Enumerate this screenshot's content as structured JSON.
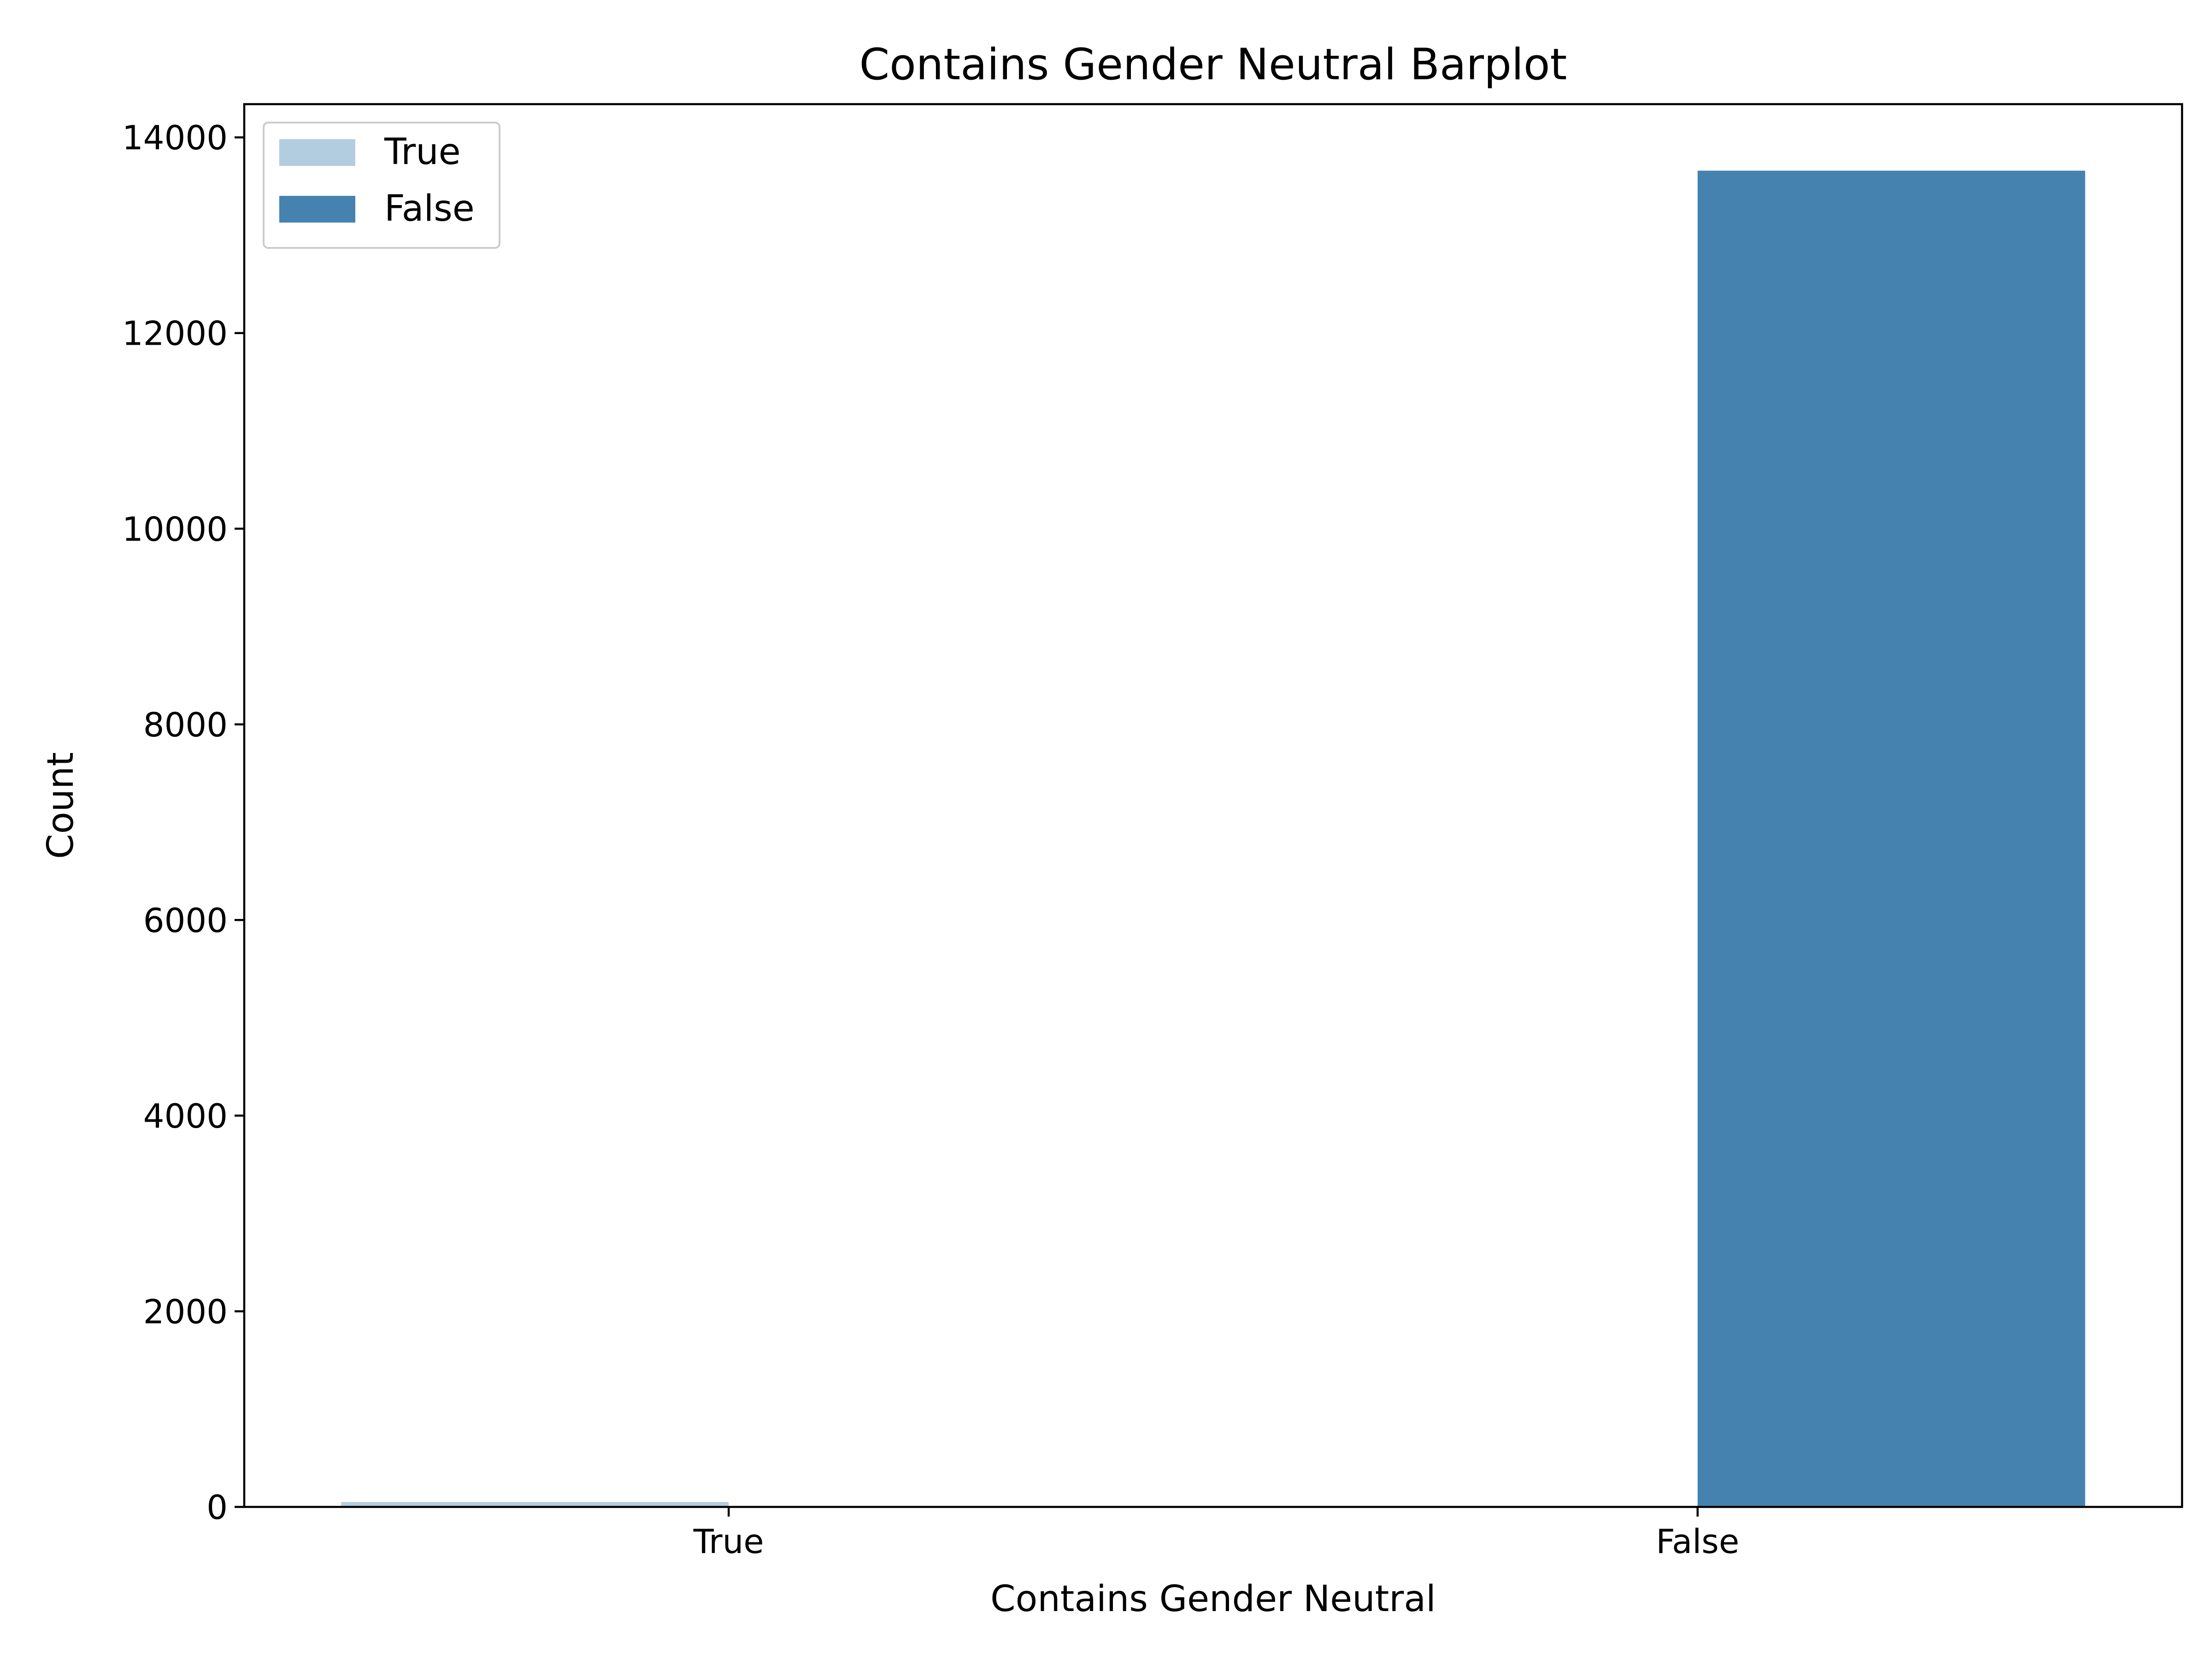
{
  "chart_data": {
    "type": "bar",
    "title": "Contains Gender Neutral Barplot",
    "xlabel": "Contains Gender Neutral",
    "ylabel": "Count",
    "categories": [
      "True",
      "False"
    ],
    "series": [
      {
        "name": "True",
        "color": "#b3cde0",
        "values": [
          50,
          0
        ]
      },
      {
        "name": "False",
        "color": "#4682b0",
        "values": [
          0,
          13660
        ]
      }
    ],
    "ylim": [
      0,
      14340
    ],
    "yticks": [
      0,
      2000,
      4000,
      6000,
      8000,
      10000,
      12000,
      14000
    ],
    "grid": false,
    "legend_position": "top-left"
  }
}
